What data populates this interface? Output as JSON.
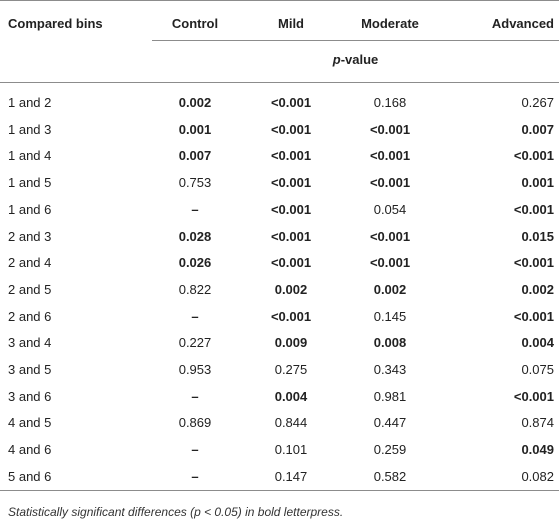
{
  "table": {
    "headers": [
      "Compared bins",
      "Control",
      "Mild",
      "Moderate",
      "Advanced"
    ],
    "subheader_italic": "p",
    "subheader_rest": "-value",
    "rows": [
      {
        "bins": "1 and 2",
        "control": "0.002",
        "mild": "<0.001",
        "moderate": "0.168",
        "advanced": "0.267",
        "bold": [
          true,
          true,
          false,
          false
        ]
      },
      {
        "bins": "1 and 3",
        "control": "0.001",
        "mild": "<0.001",
        "moderate": "<0.001",
        "advanced": "0.007",
        "bold": [
          true,
          true,
          true,
          true
        ]
      },
      {
        "bins": "1 and 4",
        "control": "0.007",
        "mild": "<0.001",
        "moderate": "<0.001",
        "advanced": "<0.001",
        "bold": [
          true,
          true,
          true,
          true
        ]
      },
      {
        "bins": "1 and 5",
        "control": "0.753",
        "mild": "<0.001",
        "moderate": "<0.001",
        "advanced": "0.001",
        "bold": [
          false,
          true,
          true,
          true
        ]
      },
      {
        "bins": "1 and 6",
        "control": "–",
        "mild": "<0.001",
        "moderate": "0.054",
        "advanced": "<0.001",
        "bold": [
          true,
          true,
          false,
          true
        ]
      },
      {
        "bins": "2 and 3",
        "control": "0.028",
        "mild": "<0.001",
        "moderate": "<0.001",
        "advanced": "0.015",
        "bold": [
          true,
          true,
          true,
          true
        ]
      },
      {
        "bins": "2 and 4",
        "control": "0.026",
        "mild": "<0.001",
        "moderate": "<0.001",
        "advanced": "<0.001",
        "bold": [
          true,
          true,
          true,
          true
        ]
      },
      {
        "bins": "2 and 5",
        "control": "0.822",
        "mild": "0.002",
        "moderate": "0.002",
        "advanced": "0.002",
        "bold": [
          false,
          true,
          true,
          true
        ]
      },
      {
        "bins": "2 and 6",
        "control": "–",
        "mild": "<0.001",
        "moderate": "0.145",
        "advanced": "<0.001",
        "bold": [
          true,
          true,
          false,
          true
        ]
      },
      {
        "bins": "3 and 4",
        "control": "0.227",
        "mild": "0.009",
        "moderate": "0.008",
        "advanced": "0.004",
        "bold": [
          false,
          true,
          true,
          true
        ]
      },
      {
        "bins": "3 and 5",
        "control": "0.953",
        "mild": "0.275",
        "moderate": "0.343",
        "advanced": "0.075",
        "bold": [
          false,
          false,
          false,
          false
        ]
      },
      {
        "bins": "3 and 6",
        "control": "–",
        "mild": "0.004",
        "moderate": "0.981",
        "advanced": "<0.001",
        "bold": [
          true,
          true,
          false,
          true
        ]
      },
      {
        "bins": "4 and 5",
        "control": "0.869",
        "mild": "0.844",
        "moderate": "0.447",
        "advanced": "0.874",
        "bold": [
          false,
          false,
          false,
          false
        ]
      },
      {
        "bins": "4 and 6",
        "control": "–",
        "mild": "0.101",
        "moderate": "0.259",
        "advanced": "0.049",
        "bold": [
          true,
          false,
          false,
          true
        ]
      },
      {
        "bins": "5 and 6",
        "control": "–",
        "mild": "0.147",
        "moderate": "0.582",
        "advanced": "0.082",
        "bold": [
          true,
          false,
          false,
          false
        ]
      }
    ]
  },
  "footnote": "Statistically significant differences (p < 0.05) in bold letterpress."
}
